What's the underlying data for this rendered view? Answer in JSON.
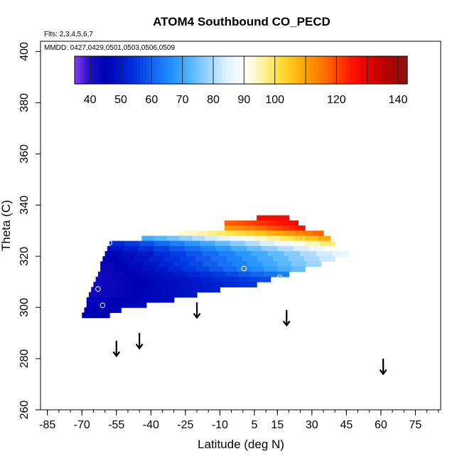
{
  "chart_data": {
    "type": "heatmap",
    "title": "ATOM4 Southbound CO_PECD",
    "note_flights": "Flts: 2,3,4,5,6,7",
    "note_dates": "MMDD: 0427,0429,0501,0503,0506,0509",
    "xlabel": "Latitude (deg N)",
    "ylabel": "Theta (C)",
    "xlim": [
      -88,
      86
    ],
    "ylim": [
      260,
      404
    ],
    "x_ticks": [
      -85,
      -70,
      -55,
      -40,
      -25,
      -10,
      5,
      15,
      30,
      45,
      60,
      75
    ],
    "x_tick_labels": [
      "-85",
      "-70",
      "-55",
      "-40",
      "-25",
      "-10",
      "5",
      "15",
      "30",
      "45",
      "60",
      "75"
    ],
    "x_minor_step": 5,
    "y_ticks": [
      260,
      280,
      300,
      320,
      340,
      360,
      380,
      400
    ],
    "y_tick_labels": [
      "260",
      "280",
      "300",
      "320",
      "340",
      "360",
      "380",
      "400"
    ],
    "colorbar": {
      "label_values": [
        40,
        50,
        60,
        70,
        80,
        90,
        100,
        120,
        140
      ],
      "label_texts": [
        "40",
        "50",
        "60",
        "70",
        "80",
        "90",
        "100",
        "120",
        "140"
      ],
      "range": [
        35,
        143
      ],
      "boundaries": [
        35,
        40,
        50,
        60,
        70,
        80,
        90,
        100,
        110,
        120,
        130,
        140,
        143
      ],
      "stops": [
        {
          "v": 35,
          "c": "#8a3bf0"
        },
        {
          "v": 40,
          "c": "#1a10c8"
        },
        {
          "v": 45,
          "c": "#0000b4"
        },
        {
          "v": 50,
          "c": "#0018c8"
        },
        {
          "v": 55,
          "c": "#0038e0"
        },
        {
          "v": 60,
          "c": "#1460f0"
        },
        {
          "v": 66,
          "c": "#1e8cff"
        },
        {
          "v": 72,
          "c": "#4cb4ff"
        },
        {
          "v": 78,
          "c": "#96d2ff"
        },
        {
          "v": 84,
          "c": "#dcf0ff"
        },
        {
          "v": 90,
          "c": "#ffffff"
        },
        {
          "v": 95,
          "c": "#fff5b4"
        },
        {
          "v": 100,
          "c": "#ffe650"
        },
        {
          "v": 105,
          "c": "#ffc81e"
        },
        {
          "v": 110,
          "c": "#ffa000"
        },
        {
          "v": 115,
          "c": "#ff7800"
        },
        {
          "v": 120,
          "c": "#ff4600"
        },
        {
          "v": 125,
          "c": "#ff1400"
        },
        {
          "v": 130,
          "c": "#e60000"
        },
        {
          "v": 136,
          "c": "#b40000"
        },
        {
          "v": 143,
          "c": "#8c1414"
        }
      ]
    },
    "field_rows": [
      {
        "theta": 334,
        "x_start": 6,
        "x_end": 20,
        "co": [
          127,
          127
        ]
      },
      {
        "theta": 332,
        "x_start": -8,
        "x_end": 24,
        "co": [
          117,
          128
        ]
      },
      {
        "theta": 330,
        "x_start": -8,
        "x_end": 27,
        "co": [
          110,
          126
        ]
      },
      {
        "theta": 328,
        "x_start": -28,
        "x_end": 35,
        "co": [
          92,
          118
        ]
      },
      {
        "theta": 326,
        "x_start": -44,
        "x_end": 38,
        "co": [
          70,
          110
        ]
      },
      {
        "theta": 324,
        "x_start": -58,
        "x_end": 40,
        "co": [
          52,
          100
        ]
      },
      {
        "theta": 322,
        "x_start": -59,
        "x_end": 42,
        "co": [
          48,
          92
        ]
      },
      {
        "theta": 320,
        "x_start": -60,
        "x_end": 46,
        "co": [
          45,
          88
        ]
      },
      {
        "theta": 318,
        "x_start": -61,
        "x_end": 40,
        "co": [
          44,
          84
        ]
      },
      {
        "theta": 316,
        "x_start": -62,
        "x_end": 34,
        "co": [
          43,
          80
        ]
      },
      {
        "theta": 314,
        "x_start": -62,
        "x_end": 27,
        "co": [
          42,
          75
        ]
      },
      {
        "theta": 312,
        "x_start": -63,
        "x_end": 20,
        "co": [
          42,
          65
        ]
      },
      {
        "theta": 310,
        "x_start": -64,
        "x_end": 12,
        "co": [
          42,
          58
        ]
      },
      {
        "theta": 308,
        "x_start": -65,
        "x_end": 6,
        "co": [
          42,
          55
        ]
      },
      {
        "theta": 306,
        "x_start": -66,
        "x_end": -10,
        "co": [
          42,
          52
        ]
      },
      {
        "theta": 304,
        "x_start": -67,
        "x_end": -20,
        "co": [
          42,
          50
        ]
      },
      {
        "theta": 302,
        "x_start": -68,
        "x_end": -30,
        "co": [
          43,
          48
        ]
      },
      {
        "theta": 300,
        "x_start": -68,
        "x_end": -42,
        "co": [
          44,
          47
        ]
      },
      {
        "theta": 298,
        "x_start": -69,
        "x_end": -53,
        "co": [
          44,
          46
        ]
      },
      {
        "theta": 296,
        "x_start": -70,
        "x_end": -58,
        "co": [
          45,
          45
        ]
      }
    ],
    "circle_markers": [
      {
        "x": -58,
        "y": 325.2
      },
      {
        "x": -63,
        "y": 307.2
      },
      {
        "x": -61,
        "y": 300.8
      },
      {
        "x": 0.5,
        "y": 315.2
      },
      {
        "x": 16,
        "y": 311.7
      }
    ],
    "arrows": [
      {
        "x": -55,
        "y_top": 287,
        "y_bottom": 281
      },
      {
        "x": -45,
        "y_top": 290,
        "y_bottom": 284
      },
      {
        "x": -20,
        "y_top": 302,
        "y_bottom": 296
      },
      {
        "x": 19,
        "y_top": 299,
        "y_bottom": 293
      },
      {
        "x": 61,
        "y_top": 280,
        "y_bottom": 274
      }
    ]
  }
}
